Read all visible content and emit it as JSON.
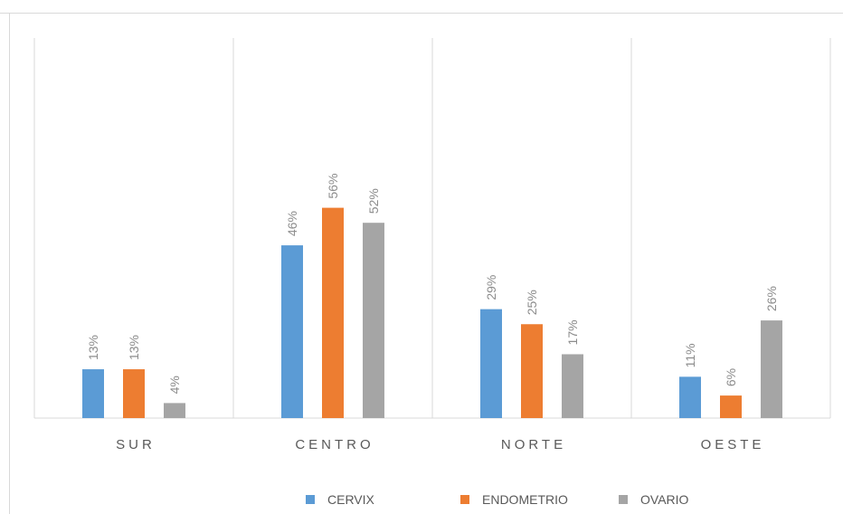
{
  "chart_data": {
    "type": "bar",
    "categories": [
      "SUR",
      "CENTRO",
      "NORTE",
      "OESTE"
    ],
    "series": [
      {
        "name": "CERVIX",
        "values": [
          13,
          46,
          29,
          11
        ],
        "labels": [
          "13%",
          "46%",
          "29%",
          "11%"
        ],
        "color": "#5b9bd5"
      },
      {
        "name": "ENDOMETRIO",
        "values": [
          13,
          56,
          25,
          6
        ],
        "labels": [
          "13%",
          "56%",
          "25%",
          "6%"
        ],
        "color": "#ed7d31"
      },
      {
        "name": "OVARIO",
        "values": [
          4,
          52,
          17,
          26
        ],
        "labels": [
          "4%",
          "52%",
          "17%",
          "26%"
        ],
        "color": "#a5a5a5"
      }
    ],
    "unit": "%",
    "ylim": [
      0,
      100
    ],
    "grid": false,
    "category_separators": true,
    "legend_position": "bottom"
  },
  "colors": {
    "axis": "#d9d9d9",
    "tick_text": "#595959",
    "data_label_text": "#8c8c8c"
  }
}
